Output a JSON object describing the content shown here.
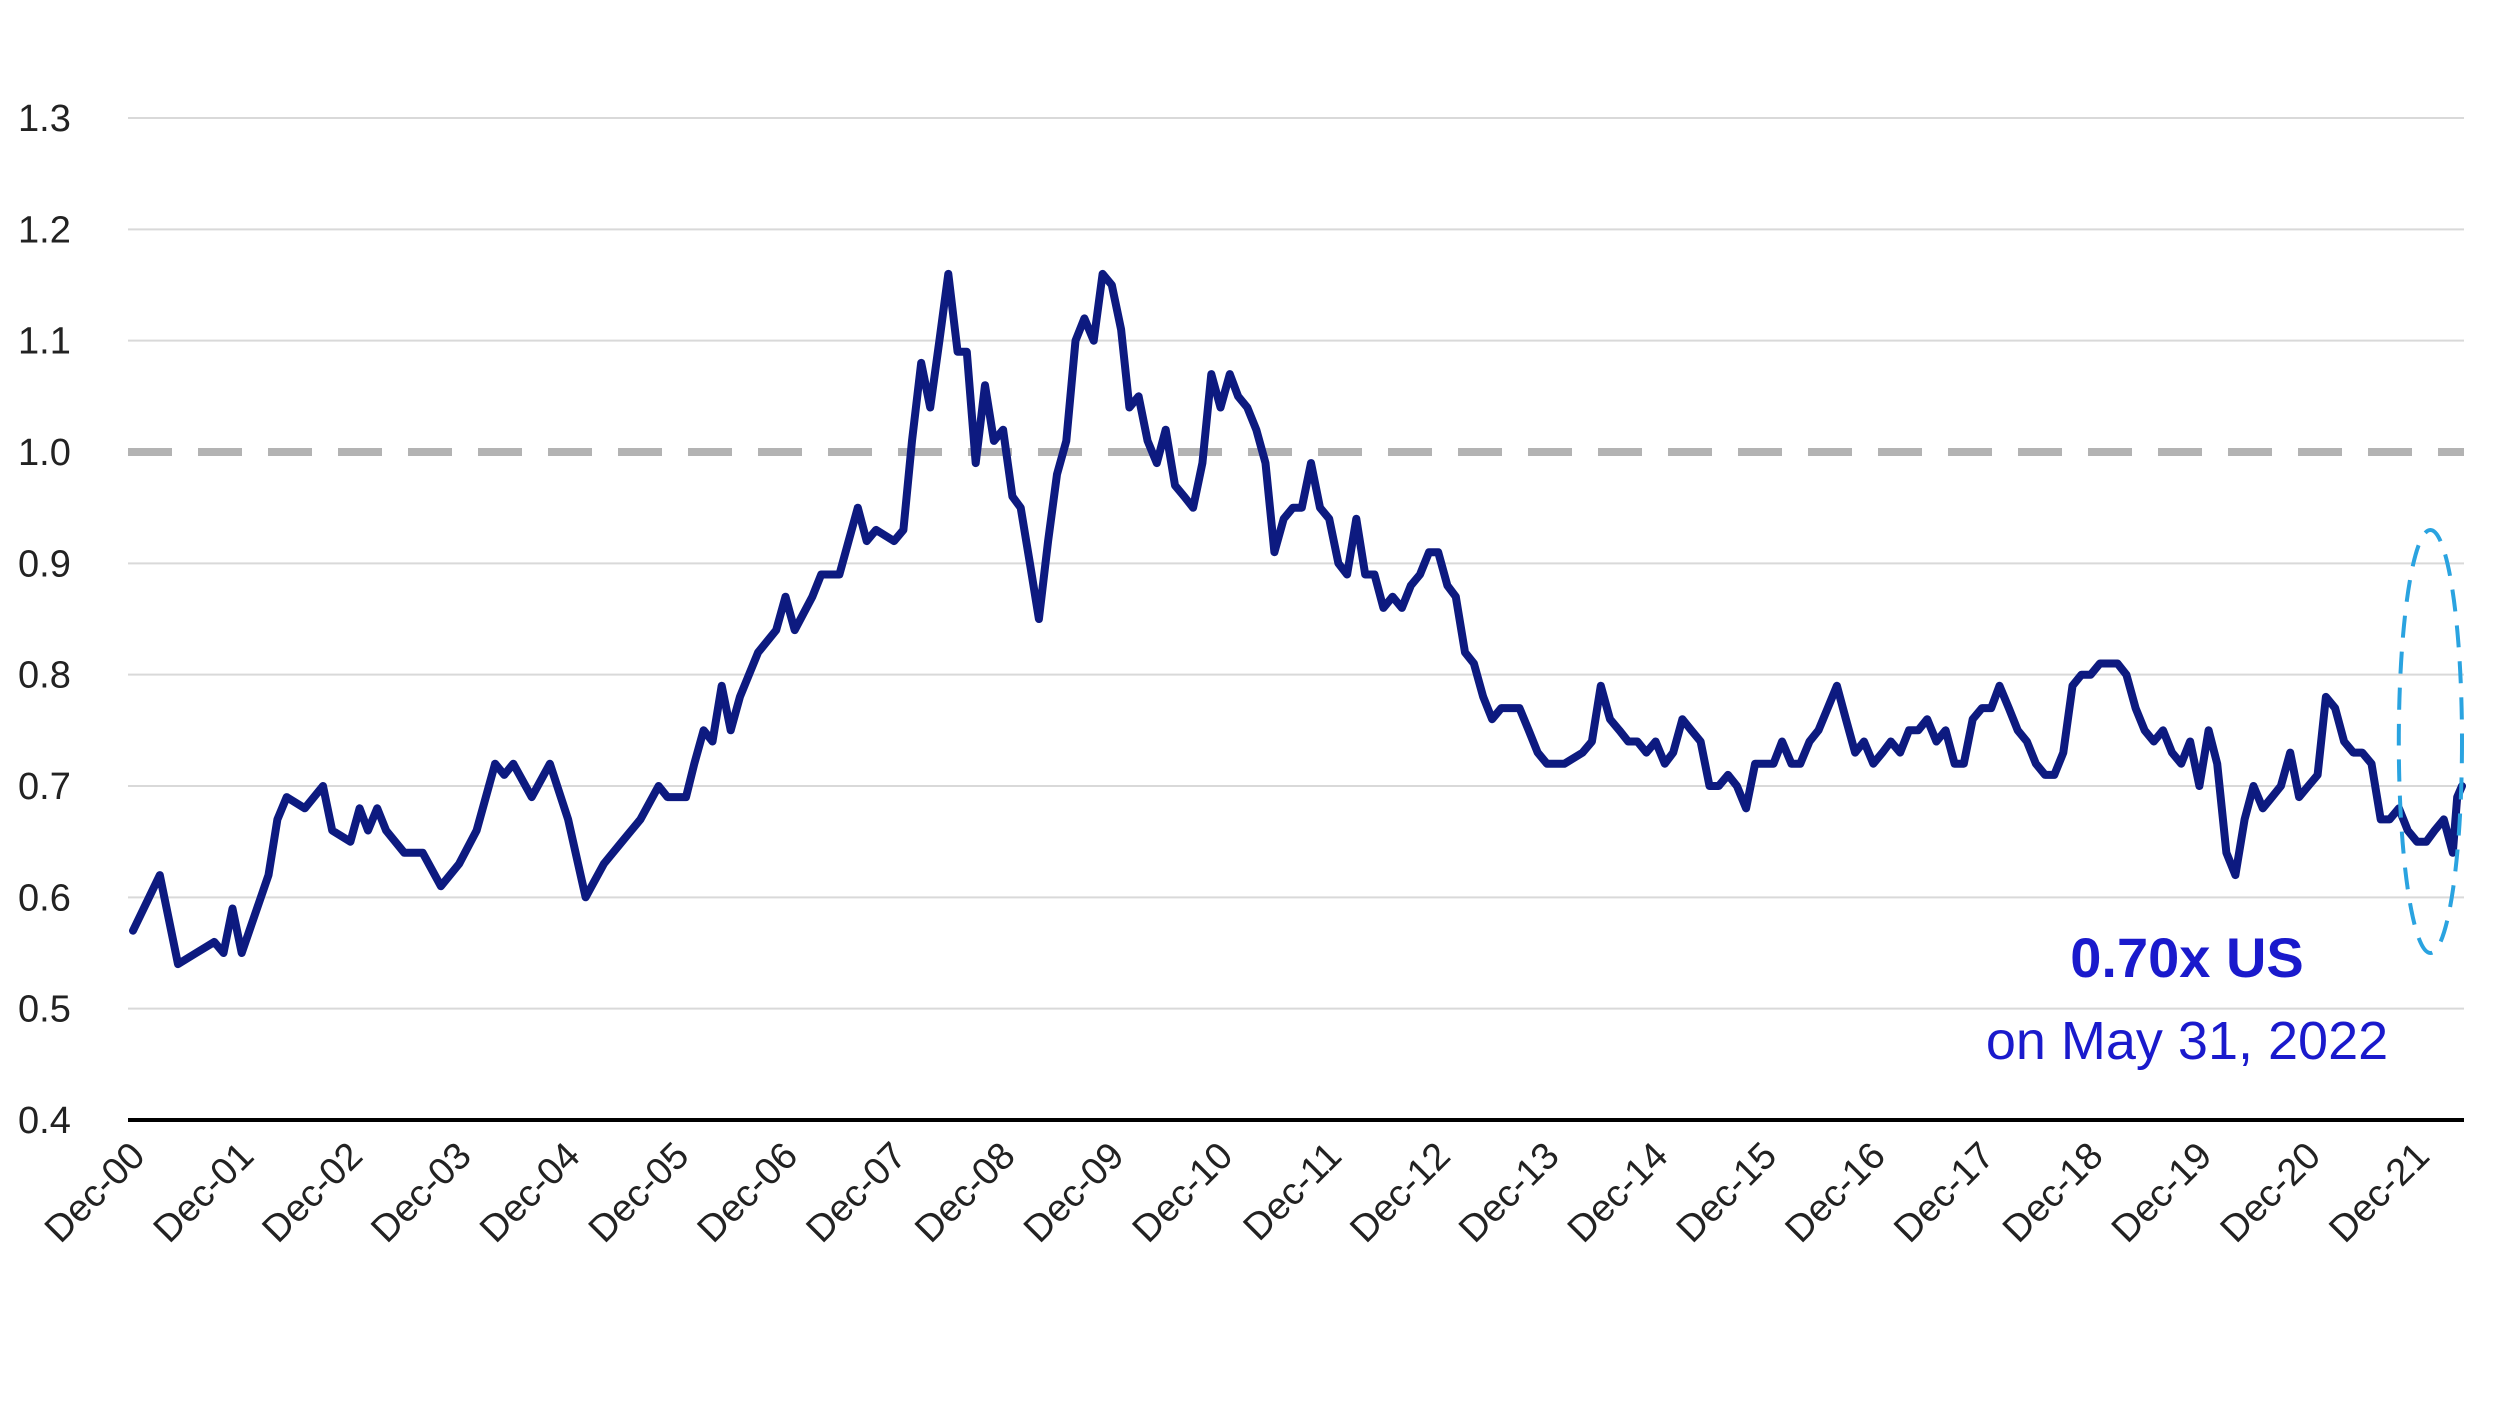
{
  "chart_data": {
    "type": "line",
    "title": "",
    "xlabel": "",
    "ylabel": "",
    "ylim": [
      0.4,
      1.3
    ],
    "yticks": [
      "1.3",
      "1.2",
      "1.1",
      "1.0",
      "0.9",
      "0.8",
      "0.7",
      "0.6",
      "0.5",
      "0.4"
    ],
    "xticks": [
      "Dec-00",
      "Dec-01",
      "Dec-02",
      "Dec-03",
      "Dec-04",
      "Dec-05",
      "Dec-06",
      "Dec-07",
      "Dec-08",
      "Dec-09",
      "Dec-10",
      "Dec-11",
      "Dec-12",
      "Dec-13",
      "Dec-14",
      "Dec-15",
      "Dec-16",
      "Dec-17",
      "Dec-18",
      "Dec-19",
      "Dec-20",
      "Dec-21"
    ],
    "x_range": [
      "2000-12-31",
      "2022-05-31"
    ],
    "grid": true,
    "reference_line": {
      "y": 1.0,
      "style": "dashed",
      "color": "#b3b3b3"
    },
    "series": [
      {
        "color": "#0d1a80",
        "points": [
          [
            "2000-12-31",
            0.57
          ],
          [
            "2001-03-31",
            0.62
          ],
          [
            "2001-05-31",
            0.54
          ],
          [
            "2001-07-31",
            0.55
          ],
          [
            "2001-09-30",
            0.56
          ],
          [
            "2001-10-31",
            0.55
          ],
          [
            "2001-11-30",
            0.59
          ],
          [
            "2001-12-31",
            0.55
          ],
          [
            "2002-03-31",
            0.62
          ],
          [
            "2002-04-30",
            0.67
          ],
          [
            "2002-05-31",
            0.69
          ],
          [
            "2002-07-31",
            0.68
          ],
          [
            "2002-09-30",
            0.7
          ],
          [
            "2002-10-31",
            0.66
          ],
          [
            "2002-12-31",
            0.65
          ],
          [
            "2003-01-31",
            0.68
          ],
          [
            "2003-02-28",
            0.66
          ],
          [
            "2003-03-31",
            0.68
          ],
          [
            "2003-04-30",
            0.66
          ],
          [
            "2003-06-30",
            0.64
          ],
          [
            "2003-08-31",
            0.64
          ],
          [
            "2003-10-31",
            0.61
          ],
          [
            "2003-12-31",
            0.63
          ],
          [
            "2004-02-28",
            0.66
          ],
          [
            "2004-04-30",
            0.72
          ],
          [
            "2004-05-31",
            0.71
          ],
          [
            "2004-06-30",
            0.72
          ],
          [
            "2004-08-31",
            0.69
          ],
          [
            "2004-10-31",
            0.72
          ],
          [
            "2004-12-31",
            0.67
          ],
          [
            "2005-02-28",
            0.6
          ],
          [
            "2005-04-30",
            0.63
          ],
          [
            "2005-06-30",
            0.65
          ],
          [
            "2005-08-31",
            0.67
          ],
          [
            "2005-10-31",
            0.7
          ],
          [
            "2005-11-30",
            0.69
          ],
          [
            "2006-01-31",
            0.69
          ],
          [
            "2006-02-28",
            0.72
          ],
          [
            "2006-03-31",
            0.75
          ],
          [
            "2006-04-30",
            0.74
          ],
          [
            "2006-05-31",
            0.79
          ],
          [
            "2006-06-30",
            0.75
          ],
          [
            "2006-07-31",
            0.78
          ],
          [
            "2006-09-30",
            0.82
          ],
          [
            "2006-11-30",
            0.84
          ],
          [
            "2006-12-31",
            0.87
          ],
          [
            "2007-01-31",
            0.84
          ],
          [
            "2007-03-31",
            0.87
          ],
          [
            "2007-04-30",
            0.89
          ],
          [
            "2007-06-30",
            0.89
          ],
          [
            "2007-07-31",
            0.92
          ],
          [
            "2007-08-31",
            0.95
          ],
          [
            "2007-09-30",
            0.92
          ],
          [
            "2007-10-31",
            0.93
          ],
          [
            "2007-12-31",
            0.92
          ],
          [
            "2008-01-31",
            0.93
          ],
          [
            "2008-02-29",
            1.01
          ],
          [
            "2008-03-31",
            1.08
          ],
          [
            "2008-04-30",
            1.04
          ],
          [
            "2008-05-31",
            1.1
          ],
          [
            "2008-06-30",
            1.16
          ],
          [
            "2008-07-31",
            1.09
          ],
          [
            "2008-08-31",
            1.09
          ],
          [
            "2008-09-30",
            0.99
          ],
          [
            "2008-10-31",
            1.06
          ],
          [
            "2008-11-30",
            1.01
          ],
          [
            "2008-12-31",
            1.02
          ],
          [
            "2009-01-31",
            0.96
          ],
          [
            "2009-02-28",
            0.95
          ],
          [
            "2009-03-31",
            0.9
          ],
          [
            "2009-04-30",
            0.85
          ],
          [
            "2009-05-31",
            0.92
          ],
          [
            "2009-06-30",
            0.98
          ],
          [
            "2009-07-31",
            1.01
          ],
          [
            "2009-08-31",
            1.1
          ],
          [
            "2009-09-30",
            1.12
          ],
          [
            "2009-10-31",
            1.1
          ],
          [
            "2009-11-30",
            1.16
          ],
          [
            "2009-12-31",
            1.15
          ],
          [
            "2010-01-31",
            1.11
          ],
          [
            "2010-02-28",
            1.04
          ],
          [
            "2010-03-31",
            1.05
          ],
          [
            "2010-04-30",
            1.01
          ],
          [
            "2010-05-31",
            0.99
          ],
          [
            "2010-06-30",
            1.02
          ],
          [
            "2010-07-31",
            0.97
          ],
          [
            "2010-08-31",
            0.96
          ],
          [
            "2010-09-30",
            0.95
          ],
          [
            "2010-10-31",
            0.99
          ],
          [
            "2010-11-30",
            1.07
          ],
          [
            "2010-12-31",
            1.04
          ],
          [
            "2011-01-31",
            1.07
          ],
          [
            "2011-02-28",
            1.05
          ],
          [
            "2011-03-31",
            1.04
          ],
          [
            "2011-04-30",
            1.02
          ],
          [
            "2011-05-31",
            0.99
          ],
          [
            "2011-06-30",
            0.91
          ],
          [
            "2011-07-31",
            0.94
          ],
          [
            "2011-08-31",
            0.95
          ],
          [
            "2011-09-30",
            0.95
          ],
          [
            "2011-10-31",
            0.99
          ],
          [
            "2011-11-30",
            0.95
          ],
          [
            "2011-12-31",
            0.94
          ],
          [
            "2012-01-31",
            0.9
          ],
          [
            "2012-02-29",
            0.89
          ],
          [
            "2012-03-31",
            0.94
          ],
          [
            "2012-04-30",
            0.89
          ],
          [
            "2012-05-31",
            0.89
          ],
          [
            "2012-06-30",
            0.86
          ],
          [
            "2012-07-31",
            0.87
          ],
          [
            "2012-08-31",
            0.86
          ],
          [
            "2012-09-30",
            0.88
          ],
          [
            "2012-10-31",
            0.89
          ],
          [
            "2012-11-30",
            0.91
          ],
          [
            "2012-12-31",
            0.91
          ],
          [
            "2013-01-31",
            0.88
          ],
          [
            "2013-02-28",
            0.87
          ],
          [
            "2013-03-31",
            0.82
          ],
          [
            "2013-04-30",
            0.81
          ],
          [
            "2013-05-31",
            0.78
          ],
          [
            "2013-06-30",
            0.76
          ],
          [
            "2013-07-31",
            0.77
          ],
          [
            "2013-09-30",
            0.77
          ],
          [
            "2013-10-31",
            0.75
          ],
          [
            "2013-11-30",
            0.73
          ],
          [
            "2013-12-31",
            0.72
          ],
          [
            "2014-02-28",
            0.72
          ],
          [
            "2014-04-30",
            0.73
          ],
          [
            "2014-05-31",
            0.74
          ],
          [
            "2014-06-30",
            0.79
          ],
          [
            "2014-07-31",
            0.76
          ],
          [
            "2014-08-31",
            0.75
          ],
          [
            "2014-09-30",
            0.74
          ],
          [
            "2014-10-31",
            0.74
          ],
          [
            "2014-11-30",
            0.73
          ],
          [
            "2014-12-31",
            0.74
          ],
          [
            "2015-01-31",
            0.72
          ],
          [
            "2015-02-28",
            0.73
          ],
          [
            "2015-03-31",
            0.76
          ],
          [
            "2015-04-30",
            0.75
          ],
          [
            "2015-05-31",
            0.74
          ],
          [
            "2015-06-30",
            0.7
          ],
          [
            "2015-07-31",
            0.7
          ],
          [
            "2015-08-31",
            0.71
          ],
          [
            "2015-09-30",
            0.7
          ],
          [
            "2015-10-31",
            0.68
          ],
          [
            "2015-11-30",
            0.72
          ],
          [
            "2015-12-31",
            0.72
          ],
          [
            "2016-01-31",
            0.72
          ],
          [
            "2016-02-29",
            0.74
          ],
          [
            "2016-03-31",
            0.72
          ],
          [
            "2016-04-30",
            0.72
          ],
          [
            "2016-05-31",
            0.74
          ],
          [
            "2016-06-30",
            0.75
          ],
          [
            "2016-07-31",
            0.77
          ],
          [
            "2016-08-31",
            0.79
          ],
          [
            "2016-09-30",
            0.76
          ],
          [
            "2016-10-31",
            0.73
          ],
          [
            "2016-11-30",
            0.74
          ],
          [
            "2016-12-31",
            0.72
          ],
          [
            "2017-01-31",
            0.73
          ],
          [
            "2017-02-28",
            0.74
          ],
          [
            "2017-03-31",
            0.73
          ],
          [
            "2017-04-30",
            0.75
          ],
          [
            "2017-05-31",
            0.75
          ],
          [
            "2017-06-30",
            0.76
          ],
          [
            "2017-07-31",
            0.74
          ],
          [
            "2017-08-31",
            0.75
          ],
          [
            "2017-09-30",
            0.72
          ],
          [
            "2017-10-31",
            0.72
          ],
          [
            "2017-11-30",
            0.76
          ],
          [
            "2017-12-31",
            0.77
          ],
          [
            "2018-01-31",
            0.77
          ],
          [
            "2018-02-28",
            0.79
          ],
          [
            "2018-03-31",
            0.77
          ],
          [
            "2018-04-30",
            0.75
          ],
          [
            "2018-05-31",
            0.74
          ],
          [
            "2018-06-30",
            0.72
          ],
          [
            "2018-07-31",
            0.71
          ],
          [
            "2018-08-31",
            0.71
          ],
          [
            "2018-09-30",
            0.73
          ],
          [
            "2018-10-31",
            0.79
          ],
          [
            "2018-11-30",
            0.8
          ],
          [
            "2018-12-31",
            0.8
          ],
          [
            "2019-01-31",
            0.81
          ],
          [
            "2019-02-28",
            0.81
          ],
          [
            "2019-03-31",
            0.81
          ],
          [
            "2019-04-30",
            0.8
          ],
          [
            "2019-05-31",
            0.77
          ],
          [
            "2019-06-30",
            0.75
          ],
          [
            "2019-07-31",
            0.74
          ],
          [
            "2019-08-31",
            0.75
          ],
          [
            "2019-09-30",
            0.73
          ],
          [
            "2019-10-31",
            0.72
          ],
          [
            "2019-11-30",
            0.74
          ],
          [
            "2019-12-31",
            0.7
          ],
          [
            "2020-01-31",
            0.75
          ],
          [
            "2020-02-29",
            0.72
          ],
          [
            "2020-03-31",
            0.64
          ],
          [
            "2020-04-30",
            0.62
          ],
          [
            "2020-05-31",
            0.67
          ],
          [
            "2020-06-30",
            0.7
          ],
          [
            "2020-07-31",
            0.68
          ],
          [
            "2020-08-31",
            0.69
          ],
          [
            "2020-09-30",
            0.7
          ],
          [
            "2020-10-31",
            0.73
          ],
          [
            "2020-11-30",
            0.69
          ],
          [
            "2020-12-31",
            0.7
          ],
          [
            "2021-01-31",
            0.71
          ],
          [
            "2021-02-28",
            0.78
          ],
          [
            "2021-03-31",
            0.77
          ],
          [
            "2021-04-30",
            0.74
          ],
          [
            "2021-05-31",
            0.73
          ],
          [
            "2021-06-30",
            0.73
          ],
          [
            "2021-07-31",
            0.72
          ],
          [
            "2021-08-31",
            0.67
          ],
          [
            "2021-09-30",
            0.67
          ],
          [
            "2021-10-31",
            0.68
          ],
          [
            "2021-11-30",
            0.66
          ],
          [
            "2021-12-31",
            0.65
          ],
          [
            "2022-01-31",
            0.65
          ],
          [
            "2022-02-28",
            0.66
          ],
          [
            "2022-03-31",
            0.67
          ],
          [
            "2022-04-30",
            0.64
          ],
          [
            "2022-05-15",
            0.69
          ],
          [
            "2022-05-31",
            0.7
          ]
        ]
      }
    ],
    "annotations": [
      {
        "text": "0.70x US",
        "weight": "bold",
        "color": "#1a1acc"
      },
      {
        "text": "on May 31, 2022",
        "weight": "normal",
        "color": "#1a1acc"
      }
    ],
    "highlight": {
      "shape": "dashed-ellipse",
      "color": "#2aa3e0",
      "x_range": [
        "2021-10-31",
        "2022-05-31"
      ],
      "y_range": [
        0.55,
        0.93
      ]
    }
  }
}
